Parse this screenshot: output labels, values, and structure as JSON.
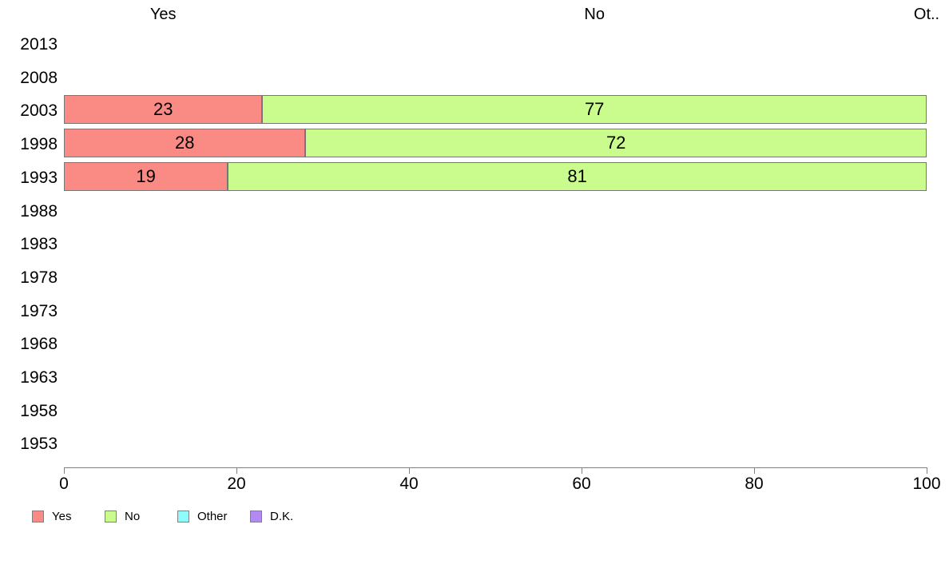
{
  "page": {
    "background": "#ffffff"
  },
  "chart_data": {
    "type": "bar",
    "orientation": "horizontal",
    "stacked": true,
    "title": "",
    "xlabel": "",
    "ylabel": "",
    "grid": false,
    "xlim": [
      0,
      100
    ],
    "x_ticks": [
      0,
      20,
      40,
      60,
      80,
      100
    ],
    "legend_position": "bottom-left",
    "categories": [
      "2013",
      "2008",
      "2003",
      "1998",
      "1993",
      "1988",
      "1983",
      "1978",
      "1973",
      "1968",
      "1963",
      "1958",
      "1953"
    ],
    "series": [
      {
        "name": "Yes",
        "color": "#fa8a84",
        "values": [
          null,
          null,
          23,
          28,
          19,
          null,
          null,
          null,
          null,
          null,
          null,
          null,
          null
        ]
      },
      {
        "name": "No",
        "color": "#c9fc8c",
        "values": [
          null,
          null,
          77,
          72,
          81,
          null,
          null,
          null,
          null,
          null,
          null,
          null,
          null
        ]
      },
      {
        "name": "Other",
        "color": "#8ffcfc",
        "values": [
          null,
          null,
          null,
          null,
          null,
          null,
          null,
          null,
          null,
          null,
          null,
          null,
          null
        ]
      },
      {
        "name": "D.K.",
        "color": "#b18af2",
        "values": [
          null,
          null,
          null,
          null,
          null,
          null,
          null,
          null,
          null,
          null,
          null,
          null,
          null
        ]
      }
    ],
    "column_headers": [
      {
        "text": "Yes",
        "x": 11.5
      },
      {
        "text": "No",
        "x": 61.5
      },
      {
        "text": "Ot..",
        "x": 100
      }
    ],
    "legend": [
      {
        "label": "Yes",
        "color": "#fa8a84"
      },
      {
        "label": "No",
        "color": "#c9fc8c"
      },
      {
        "label": "Other",
        "color": "#8ffcfc"
      },
      {
        "label": "D.K.",
        "color": "#b18af2"
      }
    ]
  }
}
